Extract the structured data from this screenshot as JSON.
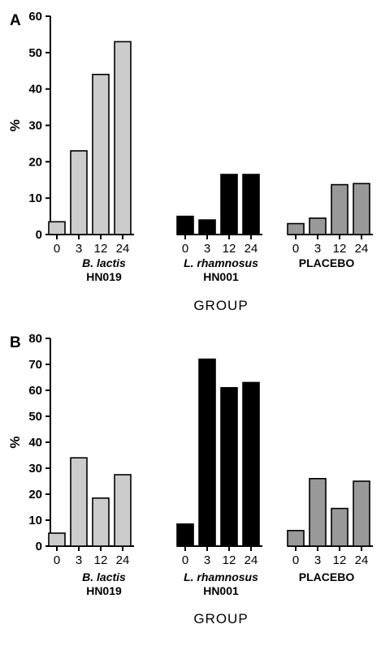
{
  "chart_data": [
    {
      "type": "bar",
      "panel": "A",
      "ylabel": "%",
      "xlabel": "GROUP",
      "ylim": [
        0,
        60
      ],
      "yticks": [
        "0",
        "10",
        "20",
        "30",
        "40",
        "50",
        "60"
      ],
      "grid": false,
      "groups": [
        {
          "name_line1": "B. lactis",
          "name_line1_italic": true,
          "name_line2": "HN019",
          "color": "#cccccc",
          "categories": [
            "0",
            "3",
            "12",
            "24"
          ],
          "values": [
            3.5,
            23,
            44,
            53
          ]
        },
        {
          "name_line1": "L. rhamnosus",
          "name_line1_italic": true,
          "name_line2": "HN001",
          "color": "#000000",
          "categories": [
            "0",
            "3",
            "12",
            "24"
          ],
          "values": [
            5,
            4,
            16.5,
            16.5
          ]
        },
        {
          "name_line1": "PLACEBO",
          "name_line1_italic": false,
          "name_line2": "",
          "color": "#999999",
          "categories": [
            "0",
            "3",
            "12",
            "24"
          ],
          "values": [
            3,
            4.5,
            13.7,
            14
          ]
        }
      ]
    },
    {
      "type": "bar",
      "panel": "B",
      "ylabel": "%",
      "xlabel": "GROUP",
      "ylim": [
        0,
        80
      ],
      "yticks": [
        "0",
        "10",
        "20",
        "30",
        "40",
        "50",
        "60",
        "70",
        "80"
      ],
      "grid": false,
      "groups": [
        {
          "name_line1": "B. lactis",
          "name_line1_italic": true,
          "name_line2": "HN019",
          "color": "#cccccc",
          "categories": [
            "0",
            "3",
            "12",
            "24"
          ],
          "values": [
            5,
            34,
            18.5,
            27.5
          ]
        },
        {
          "name_line1": "L. rhamnosus",
          "name_line1_italic": true,
          "name_line2": "HN001",
          "color": "#000000",
          "categories": [
            "0",
            "3",
            "12",
            "24"
          ],
          "values": [
            8.5,
            72,
            61,
            63
          ]
        },
        {
          "name_line1": "PLACEBO",
          "name_line1_italic": false,
          "name_line2": "",
          "color": "#999999",
          "categories": [
            "0",
            "3",
            "12",
            "24"
          ],
          "values": [
            6,
            26,
            14.5,
            25
          ]
        }
      ]
    }
  ]
}
